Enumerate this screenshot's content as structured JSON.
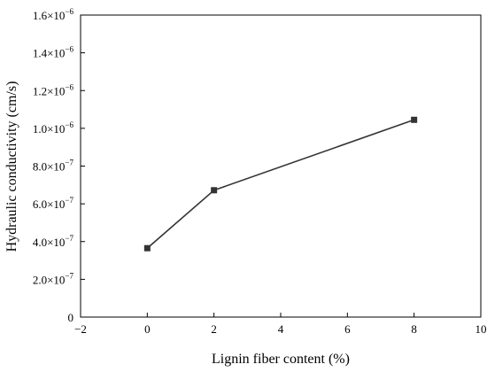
{
  "chart_data": {
    "type": "line",
    "xlabel": "Lignin fiber content (%)",
    "ylabel": "Hydraulic conductivity (cm/s)",
    "xlim": [
      -2,
      10
    ],
    "ylim": [
      0,
      1.6e-06
    ],
    "x_ticks": [
      {
        "value": -2,
        "label": "−2"
      },
      {
        "value": 0,
        "label": "0"
      },
      {
        "value": 2,
        "label": "2"
      },
      {
        "value": 4,
        "label": "4"
      },
      {
        "value": 6,
        "label": "6"
      },
      {
        "value": 8,
        "label": "8"
      },
      {
        "value": 10,
        "label": "10"
      }
    ],
    "y_ticks": [
      {
        "value": 0,
        "mant": "0",
        "exp": ""
      },
      {
        "value": 2e-07,
        "mant": "2.0×10",
        "exp": "−7"
      },
      {
        "value": 4e-07,
        "mant": "4.0×10",
        "exp": "−7"
      },
      {
        "value": 6e-07,
        "mant": "6.0×10",
        "exp": "−7"
      },
      {
        "value": 8e-07,
        "mant": "8.0×10",
        "exp": "−7"
      },
      {
        "value": 1e-06,
        "mant": "1.0×10",
        "exp": "−6"
      },
      {
        "value": 1.2e-06,
        "mant": "1.2×10",
        "exp": "−6"
      },
      {
        "value": 1.4e-06,
        "mant": "1.4×10",
        "exp": "−6"
      },
      {
        "value": 1.6e-06,
        "mant": "1.6×10",
        "exp": "−6"
      }
    ],
    "series": [
      {
        "x": [
          0,
          2,
          8
        ],
        "y": [
          3.65e-07,
          6.72e-07,
          1.045e-06
        ],
        "marker": "square",
        "color": "#333333"
      }
    ],
    "grid": false
  }
}
